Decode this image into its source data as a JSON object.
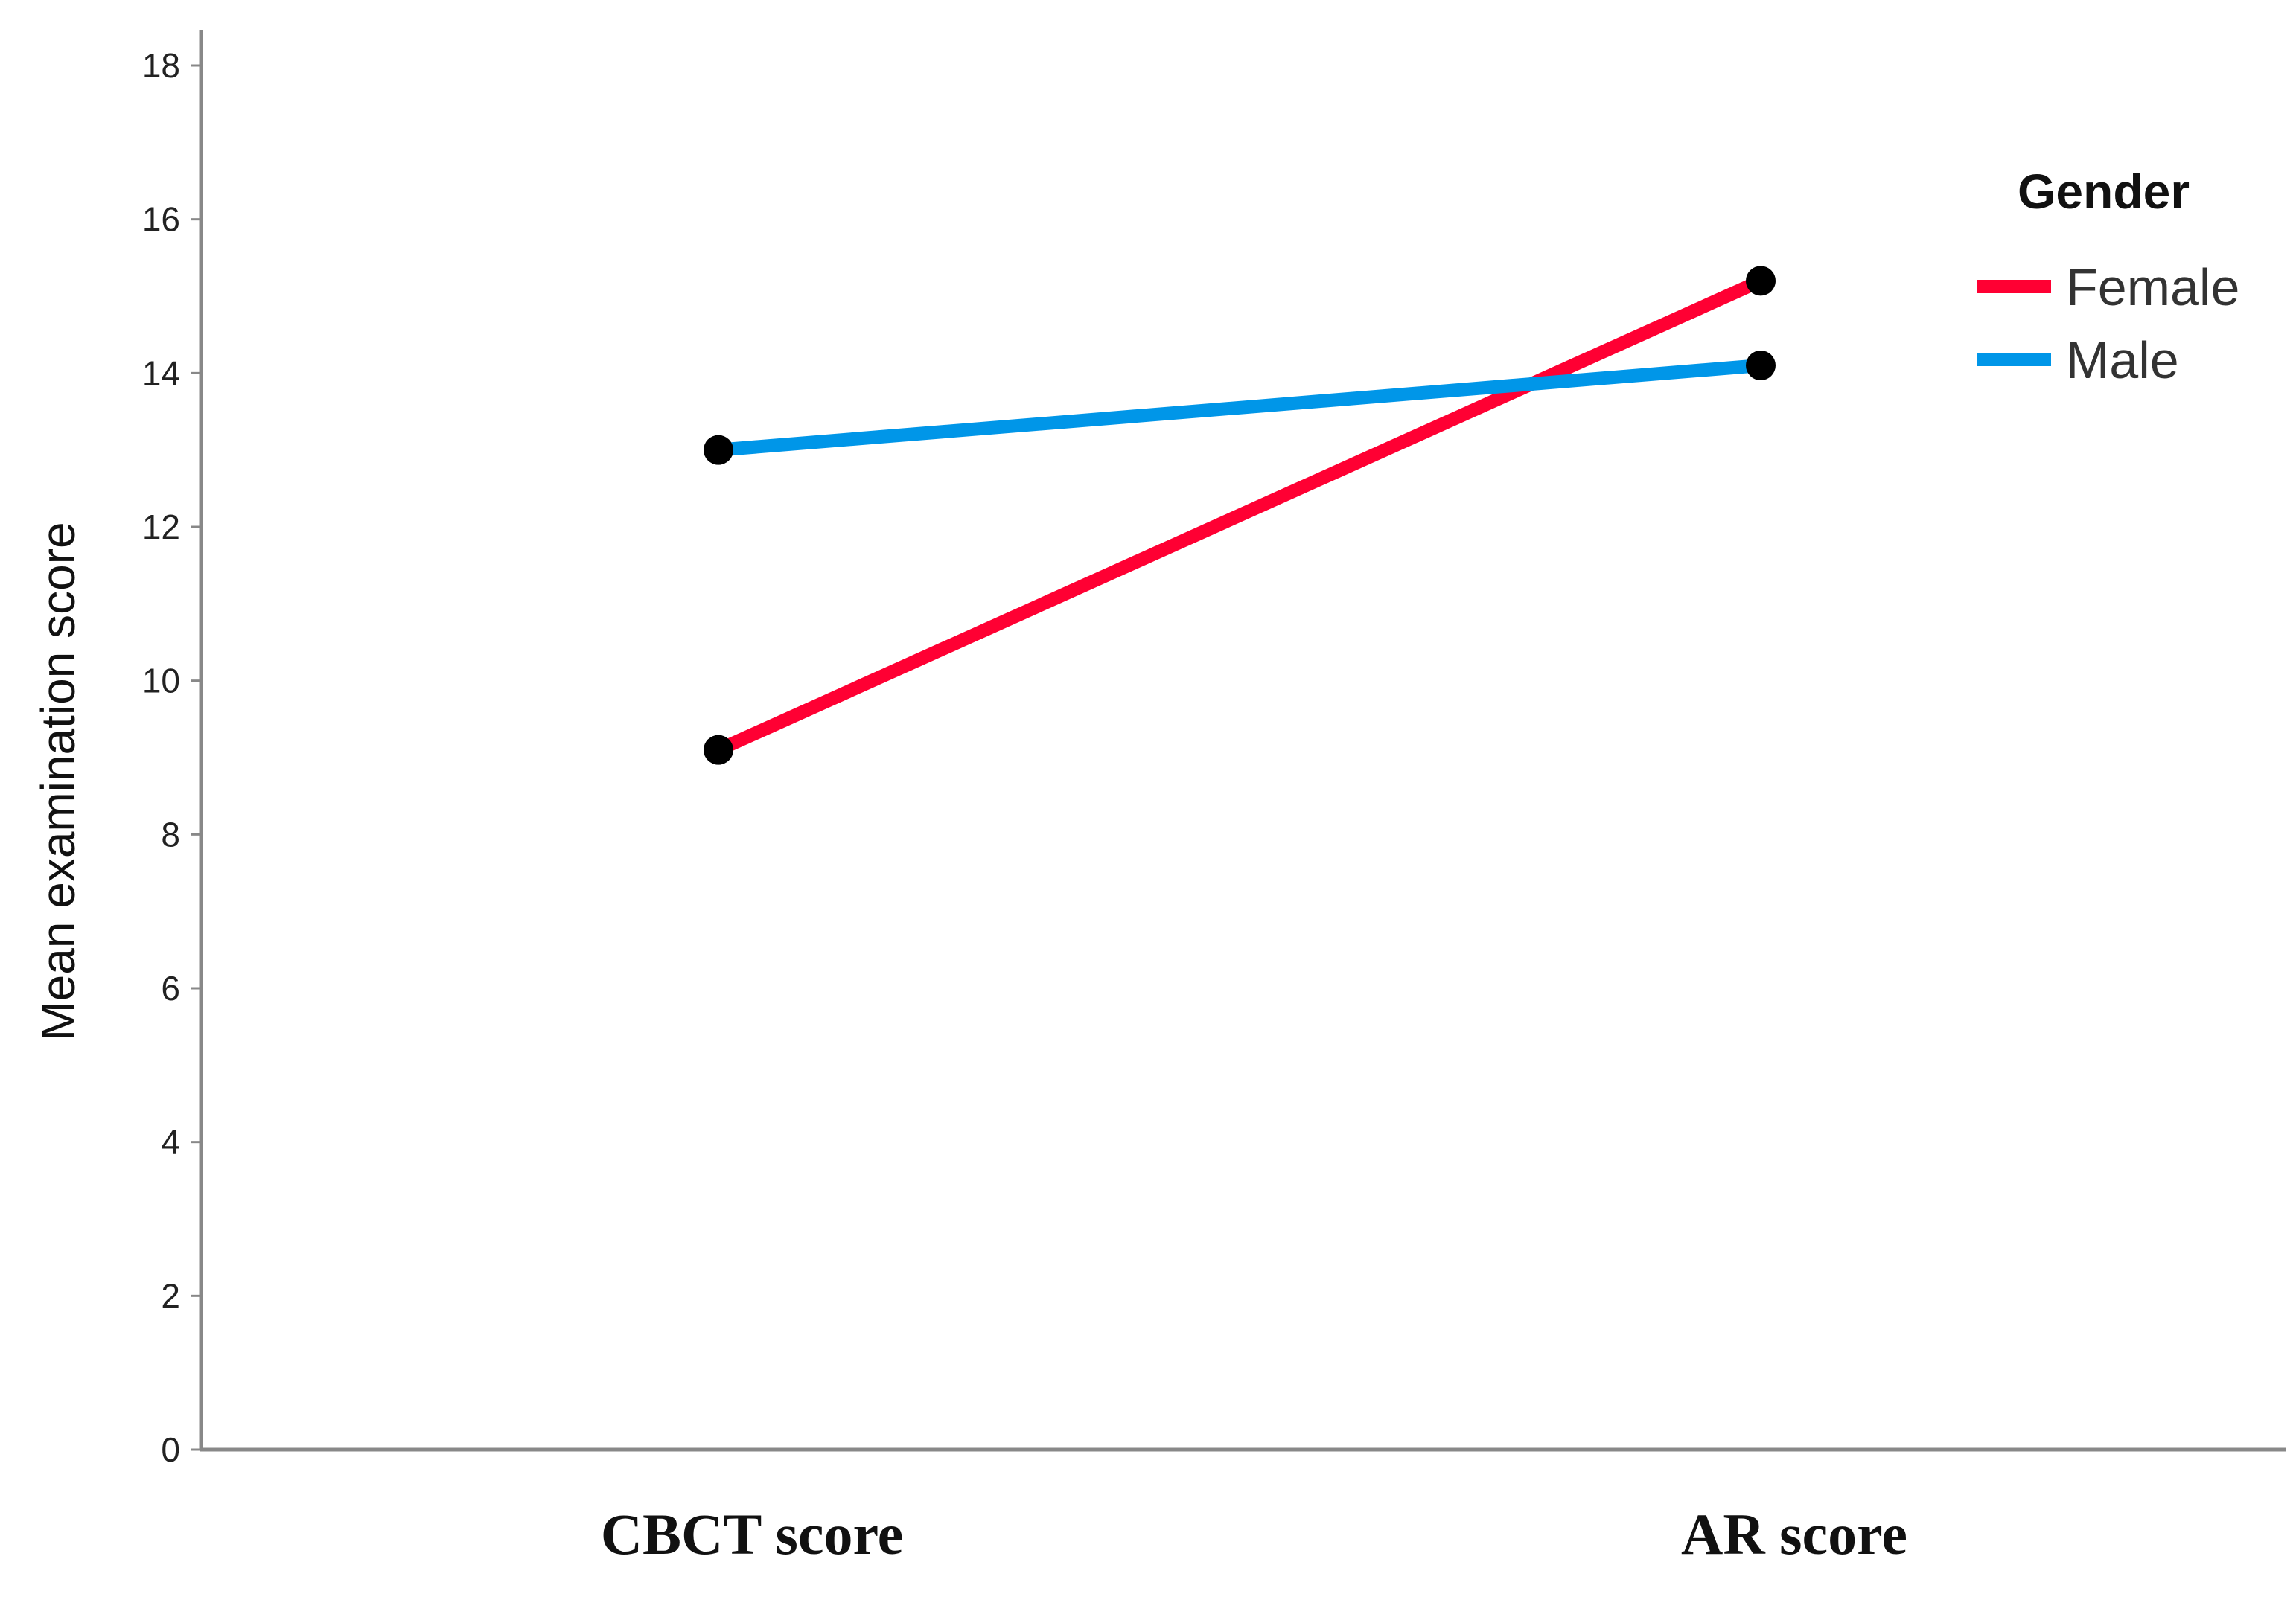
{
  "chart_data": {
    "type": "line",
    "categories": [
      "CBCT score",
      "AR score"
    ],
    "series": [
      {
        "name": "Female",
        "values": [
          9.1,
          15.2
        ],
        "color": "#ff0033"
      },
      {
        "name": "Male",
        "values": [
          13.0,
          14.1
        ],
        "color": "#0096e8"
      }
    ],
    "xlabel": "",
    "ylabel": "Mean examination score",
    "ylim": [
      0,
      18
    ],
    "yticks": [
      0,
      2,
      4,
      6,
      8,
      10,
      12,
      14,
      16,
      18
    ],
    "legend": {
      "title": "Gender",
      "position": "top-right"
    },
    "marker_color": "#000000",
    "grid": false
  }
}
